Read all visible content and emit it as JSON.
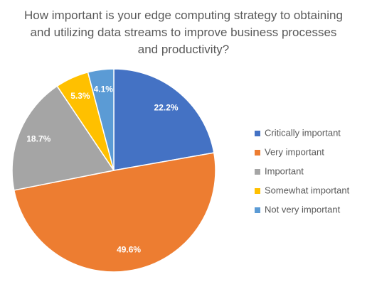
{
  "chart_data": {
    "type": "pie",
    "title": "How important is your edge computing strategy to obtaining and utilizing data streams to improve business processes and productivity?",
    "categories": [
      "Critically important",
      "Very important",
      "Important",
      "Somewhat important",
      "Not very important"
    ],
    "values": [
      22.2,
      49.6,
      18.7,
      5.3,
      4.1
    ],
    "value_labels": [
      "22.2%",
      "49.6%",
      "18.7%",
      "5.3%",
      "4.1%"
    ],
    "colors": [
      "#4472c4",
      "#ed7d31",
      "#a5a5a5",
      "#ffc000",
      "#5b9bd5"
    ],
    "legend": "right"
  }
}
